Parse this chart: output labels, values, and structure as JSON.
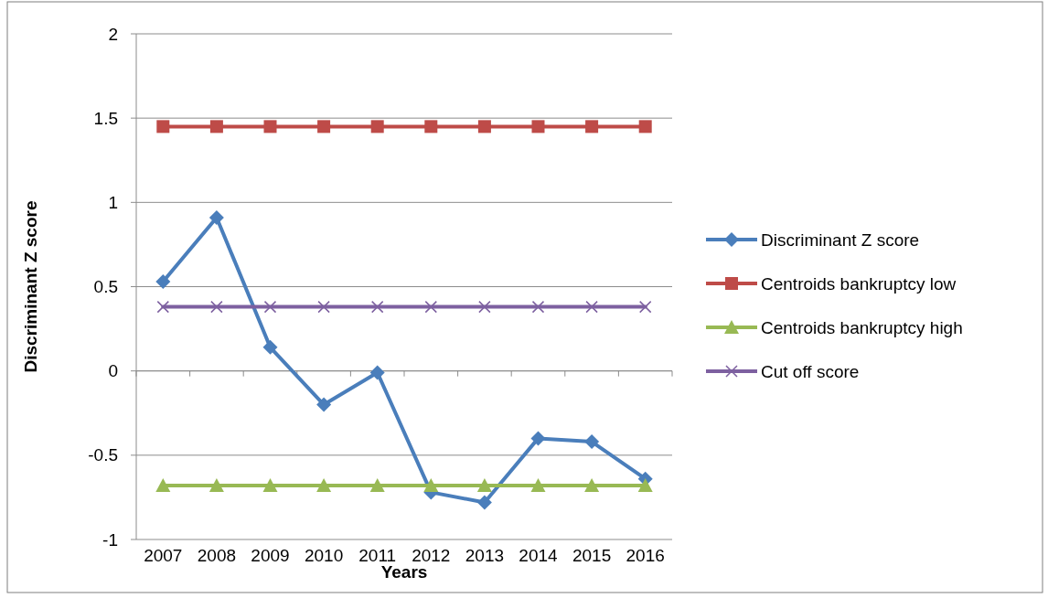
{
  "chart_data": {
    "type": "line",
    "xlabel": "Years",
    "ylabel": "Discriminant Z score",
    "categories": [
      "2007",
      "2008",
      "2009",
      "2010",
      "2011",
      "2012",
      "2013",
      "2014",
      "2015",
      "2016"
    ],
    "series": [
      {
        "name": "Discriminant Z score",
        "color": "#4a7ebb",
        "marker": "diamond",
        "values": [
          0.53,
          0.91,
          0.14,
          -0.2,
          -0.01,
          -0.72,
          -0.78,
          -0.4,
          -0.42,
          -0.64
        ]
      },
      {
        "name": "Centroids bankruptcy low",
        "color": "#be4b48",
        "marker": "square",
        "values": [
          1.45,
          1.45,
          1.45,
          1.45,
          1.45,
          1.45,
          1.45,
          1.45,
          1.45,
          1.45
        ]
      },
      {
        "name": "Centroids bankruptcy high",
        "color": "#98b954",
        "marker": "triangle",
        "values": [
          -0.68,
          -0.68,
          -0.68,
          -0.68,
          -0.68,
          -0.68,
          -0.68,
          -0.68,
          -0.68,
          -0.68
        ]
      },
      {
        "name": "Cut off score",
        "color": "#7d60a0",
        "marker": "cross",
        "values": [
          0.38,
          0.38,
          0.38,
          0.38,
          0.38,
          0.38,
          0.38,
          0.38,
          0.38,
          0.38
        ]
      }
    ],
    "ylim": [
      -1,
      2
    ],
    "yticks": [
      -1,
      -0.5,
      0,
      0.5,
      1,
      1.5,
      2
    ],
    "grid": "y",
    "legend": "right"
  }
}
